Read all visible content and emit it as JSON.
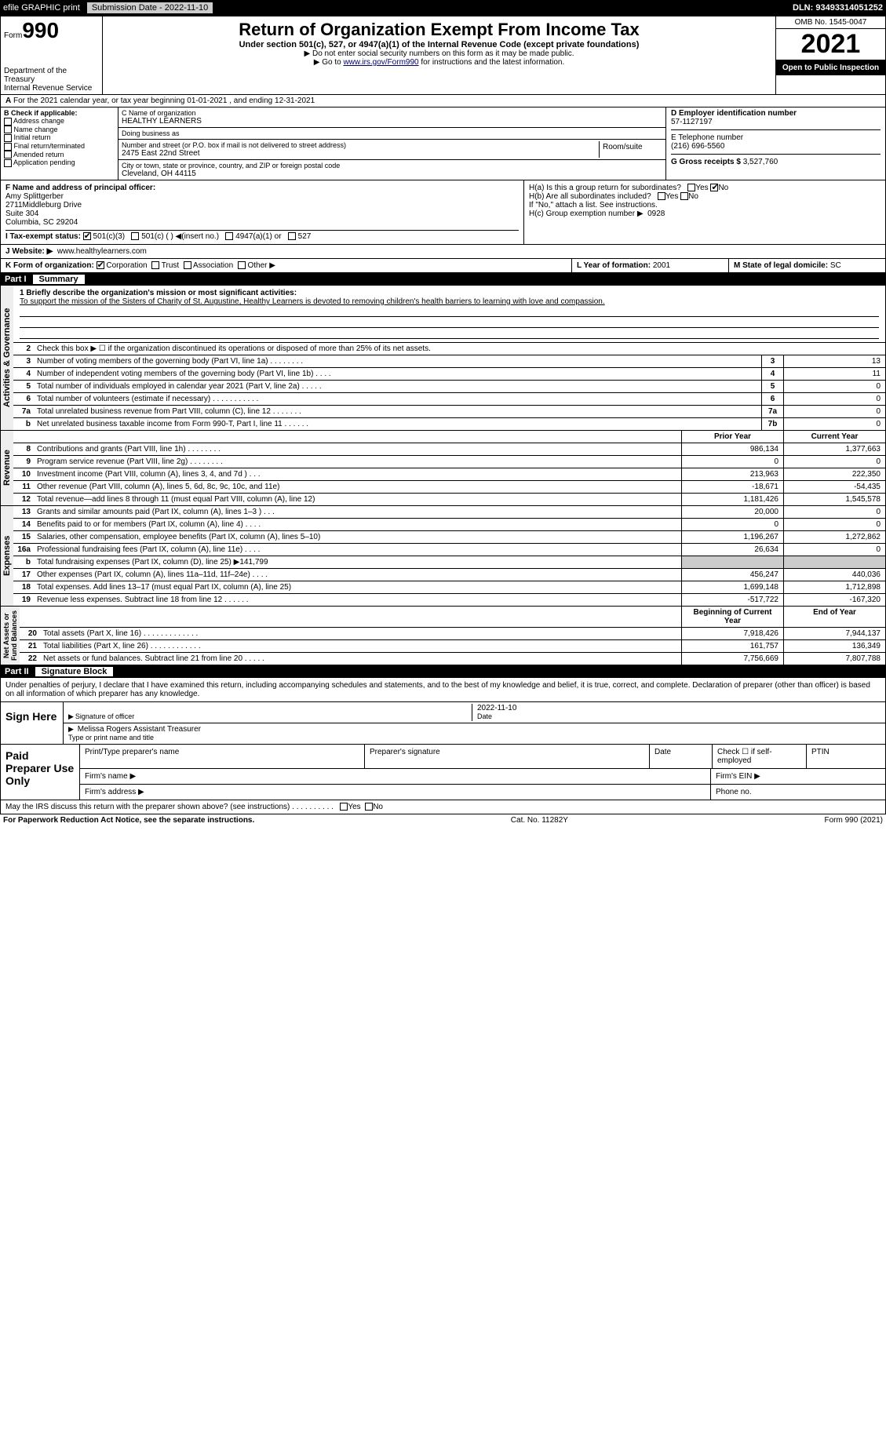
{
  "topbar": {
    "efile": "efile GRAPHIC print",
    "submission_label": "Submission Date - 2022-11-10",
    "dln": "DLN: 93493314051252"
  },
  "header": {
    "form_label": "Form",
    "form_number": "990",
    "title": "Return of Organization Exempt From Income Tax",
    "subtitle": "Under section 501(c), 527, or 4947(a)(1) of the Internal Revenue Code (except private foundations)",
    "warn": "▶ Do not enter social security numbers on this form as it may be made public.",
    "goto_pre": "▶ Go to ",
    "goto_link": "www.irs.gov/Form990",
    "goto_post": " for instructions and the latest information.",
    "dept": "Department of the Treasury\nInternal Revenue Service",
    "omb": "OMB No. 1545-0047",
    "year": "2021",
    "open": "Open to Public Inspection"
  },
  "periodA": "For the 2021 calendar year, or tax year beginning 01-01-2021    , and ending 12-31-2021",
  "boxB": {
    "title": "B Check if applicable:",
    "items": [
      "Address change",
      "Name change",
      "Initial return",
      "Final return/terminated",
      "Amended return",
      "Application pending"
    ]
  },
  "boxC": {
    "name_label": "C Name of organization",
    "name": "HEALTHY LEARNERS",
    "dba_label": "Doing business as",
    "dba": "",
    "street_label": "Number and street (or P.O. box if mail is not delivered to street address)",
    "room_label": "Room/suite",
    "street": "2475 East 22nd Street",
    "city_label": "City or town, state or province, country, and ZIP or foreign postal code",
    "city": "Cleveland, OH  44115"
  },
  "boxD": {
    "label": "D Employer identification number",
    "value": "57-1127197"
  },
  "boxE": {
    "label": "E Telephone number",
    "value": "(216) 696-5560"
  },
  "boxG": {
    "label": "G Gross receipts $",
    "value": "3,527,760"
  },
  "boxF": {
    "label": "F  Name and address of principal officer:",
    "name": "Amy Splittgerber",
    "addr1": "2711Middleburg Drive",
    "addr2": "Suite 304",
    "addr3": "Columbia, SC  29204"
  },
  "boxH": {
    "a": "H(a)  Is this a group return for subordinates?",
    "b": "H(b)  Are all subordinates included?",
    "b2": "If \"No,\" attach a list. See instructions.",
    "c": "H(c)  Group exemption number ▶",
    "c_val": "0928",
    "yes": "Yes",
    "no": "No"
  },
  "boxI": {
    "label": "I    Tax-exempt status:",
    "opts": [
      "501(c)(3)",
      "501(c) (  ) ◀(insert no.)",
      "4947(a)(1) or",
      "527"
    ]
  },
  "boxJ": {
    "label": "J   Website: ▶",
    "value": "www.healthylearners.com"
  },
  "boxK": {
    "label": "K Form of organization:",
    "opts": [
      "Corporation",
      "Trust",
      "Association",
      "Other ▶"
    ]
  },
  "boxL": {
    "label": "L Year of formation:",
    "value": "2001"
  },
  "boxM": {
    "label": "M State of legal domicile:",
    "value": "SC"
  },
  "part1": {
    "num": "Part I",
    "title": "Summary"
  },
  "mission": {
    "q": "1   Briefly describe the organization's mission or most significant activities:",
    "text": "To support the mission of the Sisters of Charity of St. Augustine, Healthy Learners is devoted to removing children's health barriers to learning with love and compassion."
  },
  "gov_label": "Activities & Governance",
  "gov_rows": [
    {
      "n": "2",
      "d": "Check this box ▶ ☐  if the organization discontinued its operations or disposed of more than 25% of its net assets.",
      "box": "",
      "v": ""
    },
    {
      "n": "3",
      "d": "Number of voting members of the governing body (Part VI, line 1a)   .    .    .    .    .    .    .    .",
      "box": "3",
      "v": "13"
    },
    {
      "n": "4",
      "d": "Number of independent voting members of the governing body (Part VI, line 1b)   .    .    .    .",
      "box": "4",
      "v": "11"
    },
    {
      "n": "5",
      "d": "Total number of individuals employed in calendar year 2021 (Part V, line 2a)   .    .    .    .    .",
      "box": "5",
      "v": "0"
    },
    {
      "n": "6",
      "d": "Total number of volunteers (estimate if necessary)    .    .    .    .    .    .    .    .    .    .    .",
      "box": "6",
      "v": "0"
    },
    {
      "n": "7a",
      "d": "Total unrelated business revenue from Part VIII, column (C), line 12   .    .    .    .    .    .    .",
      "box": "7a",
      "v": "0"
    },
    {
      "n": "b",
      "d": "Net unrelated business taxable income from Form 990-T, Part I, line 11   .    .    .    .    .    .",
      "box": "7b",
      "v": "0"
    }
  ],
  "rev_label": "Revenue",
  "col_hdr": {
    "py": "Prior Year",
    "cy": "Current Year"
  },
  "rev_rows": [
    {
      "n": "8",
      "d": "Contributions and grants (Part VIII, line 1h)   .    .    .    .    .    .    .    .",
      "py": "986,134",
      "cy": "1,377,663"
    },
    {
      "n": "9",
      "d": "Program service revenue (Part VIII, line 2g)   .    .    .    .    .    .    .    .",
      "py": "0",
      "cy": "0"
    },
    {
      "n": "10",
      "d": "Investment income (Part VIII, column (A), lines 3, 4, and 7d )   .    .    .",
      "py": "213,963",
      "cy": "222,350"
    },
    {
      "n": "11",
      "d": "Other revenue (Part VIII, column (A), lines 5, 6d, 8c, 9c, 10c, and 11e)",
      "py": "-18,671",
      "cy": "-54,435"
    },
    {
      "n": "12",
      "d": "Total revenue—add lines 8 through 11 (must equal Part VIII, column (A), line 12)",
      "py": "1,181,426",
      "cy": "1,545,578"
    }
  ],
  "exp_label": "Expenses",
  "exp_rows": [
    {
      "n": "13",
      "d": "Grants and similar amounts paid (Part IX, column (A), lines 1–3 )   .    .    .",
      "py": "20,000",
      "cy": "0"
    },
    {
      "n": "14",
      "d": "Benefits paid to or for members (Part IX, column (A), line 4)   .    .    .    .",
      "py": "0",
      "cy": "0"
    },
    {
      "n": "15",
      "d": "Salaries, other compensation, employee benefits (Part IX, column (A), lines 5–10)",
      "py": "1,196,267",
      "cy": "1,272,862"
    },
    {
      "n": "16a",
      "d": "Professional fundraising fees (Part IX, column (A), line 11e)   .    .    .    .",
      "py": "26,634",
      "cy": "0"
    },
    {
      "n": "b",
      "d": "Total fundraising expenses (Part IX, column (D), line 25) ▶141,799",
      "py": "grey",
      "cy": "grey"
    },
    {
      "n": "17",
      "d": "Other expenses (Part IX, column (A), lines 11a–11d, 11f–24e)   .    .    .    .",
      "py": "456,247",
      "cy": "440,036"
    },
    {
      "n": "18",
      "d": "Total expenses. Add lines 13–17 (must equal Part IX, column (A), line 25)",
      "py": "1,699,148",
      "cy": "1,712,898"
    },
    {
      "n": "19",
      "d": "Revenue less expenses. Subtract line 18 from line 12   .    .    .    .    .    .",
      "py": "-517,722",
      "cy": "-167,320"
    }
  ],
  "na_label": "Net Assets or\nFund Balances",
  "na_hdr": {
    "py": "Beginning of Current Year",
    "cy": "End of Year"
  },
  "na_rows": [
    {
      "n": "20",
      "d": "Total assets (Part X, line 16)   .    .    .    .    .    .    .    .    .    .    .    .    .",
      "py": "7,918,426",
      "cy": "7,944,137"
    },
    {
      "n": "21",
      "d": "Total liabilities (Part X, line 26)   .    .    .    .    .    .    .    .    .    .    .    .",
      "py": "161,757",
      "cy": "136,349"
    },
    {
      "n": "22",
      "d": "Net assets or fund balances. Subtract line 21 from line 20   .    .    .    .    .",
      "py": "7,756,669",
      "cy": "7,807,788"
    }
  ],
  "part2": {
    "num": "Part II",
    "title": "Signature Block"
  },
  "sig": {
    "decl": "Under penalties of perjury, I declare that I have examined this return, including accompanying schedules and statements, and to the best of my knowledge and belief, it is true, correct, and complete. Declaration of preparer (other than officer) is based on all information of which preparer has any knowledge.",
    "sign_here": "Sign Here",
    "sig_officer": "Signature of officer",
    "date": "Date",
    "date_val": "2022-11-10",
    "name": "Melissa Rogers  Assistant Treasurer",
    "name_label": "Type or print name and title"
  },
  "paid": {
    "label": "Paid Preparer Use Only",
    "r1": [
      "Print/Type preparer's name",
      "Preparer's signature",
      "Date",
      "Check ☐ if self-employed",
      "PTIN"
    ],
    "r2l": "Firm's name   ▶",
    "r2r": "Firm's EIN ▶",
    "r3l": "Firm's address ▶",
    "r3r": "Phone no."
  },
  "discuss": "May the IRS discuss this return with the preparer shown above? (see instructions)   .    .    .    .    .    .    .    .    .    .",
  "foot": {
    "l": "For Paperwork Reduction Act Notice, see the separate instructions.",
    "m": "Cat. No. 11282Y",
    "r": "Form 990 (2021)"
  }
}
